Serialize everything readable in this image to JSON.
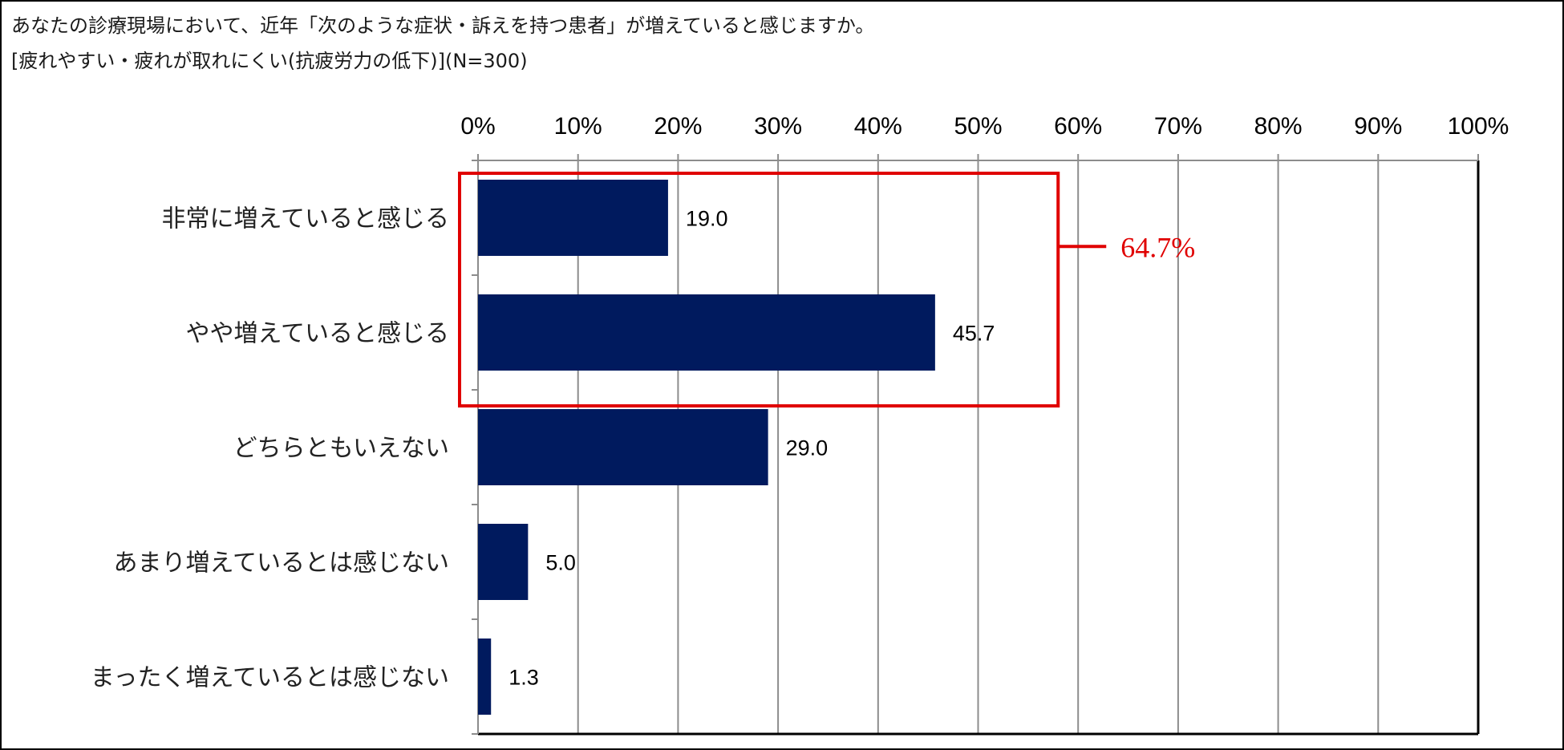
{
  "chart_data": {
    "type": "bar",
    "orientation": "horizontal",
    "title": "あなたの診療現場において、近年「次のような症状・訴えを持つ患者」が増えていると感じますか。",
    "subtitle": "[疲れやすい・疲れが取れにくい(抗疲労力の低下)](N=300)",
    "categories": [
      "非常に増えていると感じる",
      "やや増えていると感じる",
      "どちらともいえない",
      "あまり増えているとは感じない",
      "まったく増えているとは感じない"
    ],
    "values": [
      19.0,
      45.7,
      29.0,
      5.0,
      1.3
    ],
    "value_labels": [
      "19.0",
      "45.7",
      "29.0",
      "5.0",
      "1.3"
    ],
    "xlim": [
      0,
      100
    ],
    "x_ticks": [
      "0%",
      "10%",
      "20%",
      "30%",
      "40%",
      "50%",
      "60%",
      "70%",
      "80%",
      "90%",
      "100%"
    ],
    "x_tick_values": [
      0,
      10,
      20,
      30,
      40,
      50,
      60,
      70,
      80,
      90,
      100
    ],
    "x_axis_position": "top",
    "grid": true,
    "bar_color": "#001a5e",
    "annotation": {
      "label": "64.7%",
      "color": "#e00000",
      "covers_categories": [
        0,
        1
      ]
    }
  }
}
